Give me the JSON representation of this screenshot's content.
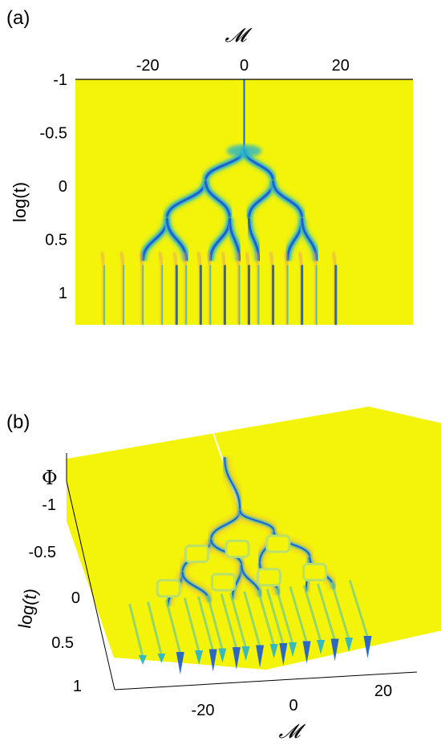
{
  "colors": {
    "surface": "#f4f40a",
    "mid": "#2bb6c8",
    "deep": "#2060d0",
    "edge": "#e8a060"
  },
  "panel_a": {
    "label": "(a)"
  },
  "panel_b": {
    "label": "(b)"
  },
  "chart_data": [
    {
      "type": "heatmap",
      "panel": "(a)",
      "title": "",
      "xlabel": "𝓜",
      "ylabel": "log(t)",
      "xlim": [
        -35,
        35
      ],
      "ylim": [
        -1,
        1.3
      ],
      "y_direction": "down",
      "x_ticks": [
        "-20",
        "0",
        "20"
      ],
      "y_ticks": [
        "-1",
        "-0.5",
        "0",
        "0.5",
        "1"
      ],
      "background_color": "yellow",
      "colormap_low_values": "blue",
      "branches": [
        {
          "from_x": 0,
          "to_x": 0,
          "from_t": -1,
          "to_t": -0.35
        },
        {
          "from_x": 0,
          "to_x": -8,
          "from_t": -0.35,
          "to_t": -0.05
        },
        {
          "from_x": 0,
          "to_x": 6,
          "from_t": -0.35,
          "to_t": -0.05
        },
        {
          "from_x": -8,
          "to_x": -16,
          "from_t": -0.05,
          "to_t": 0.3
        },
        {
          "from_x": -8,
          "to_x": -3,
          "from_t": -0.05,
          "to_t": 0.3
        },
        {
          "from_x": 6,
          "to_x": 1,
          "from_t": -0.05,
          "to_t": 0.3
        },
        {
          "from_x": 6,
          "to_x": 12,
          "from_t": -0.05,
          "to_t": 0.3
        },
        {
          "from_x": -16,
          "to_x": -21,
          "from_t": 0.3,
          "to_t": 0.7
        },
        {
          "from_x": -16,
          "to_x": -12,
          "from_t": 0.3,
          "to_t": 0.7
        },
        {
          "from_x": -3,
          "to_x": -7,
          "from_t": 0.3,
          "to_t": 0.7
        },
        {
          "from_x": -3,
          "to_x": -1,
          "from_t": 0.3,
          "to_t": 0.7
        },
        {
          "from_x": 1,
          "to_x": 3,
          "from_t": 0.3,
          "to_t": 0.7
        },
        {
          "from_x": 12,
          "to_x": 9,
          "from_t": 0.3,
          "to_t": 0.7
        },
        {
          "from_x": 12,
          "to_x": 15,
          "from_t": 0.3,
          "to_t": 0.7
        }
      ],
      "final_lines_x": [
        -29,
        -25,
        -21,
        -17,
        -14,
        -12,
        -9,
        -7,
        -4,
        -1,
        1,
        3,
        6,
        9,
        12,
        15,
        19
      ]
    },
    {
      "type": "surface",
      "panel": "(b)",
      "title": "",
      "xlabel": "𝓜",
      "ylabel": "log(t)",
      "zlabel": "Φ",
      "x_ticks": [
        "-20",
        "0",
        "20"
      ],
      "y_ticks": [
        "-1",
        "-0.5",
        "0",
        "0.5",
        "1"
      ],
      "background_color": "yellow",
      "spikes_downward": true
    }
  ]
}
